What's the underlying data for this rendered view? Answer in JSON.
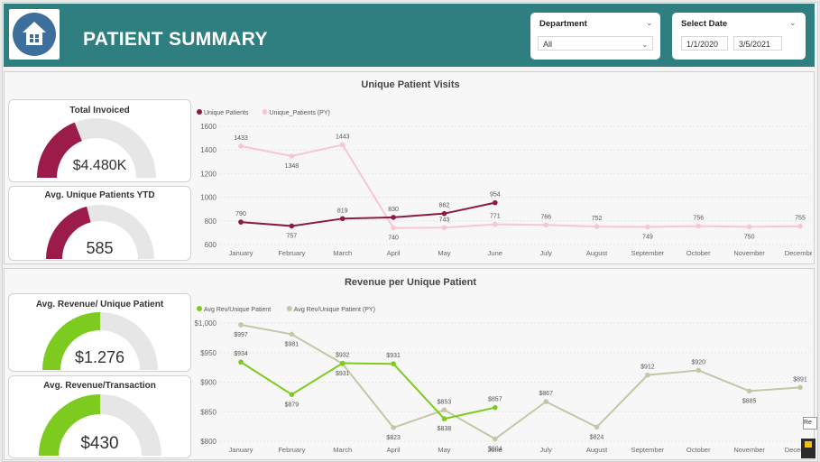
{
  "header": {
    "title": "PATIENT SUMMARY",
    "logo_icon": "home-icon",
    "bg_color": "#2f7f80"
  },
  "filters": {
    "department": {
      "label": "Department",
      "value": "All"
    },
    "date": {
      "label": "Select Date",
      "start": "1/1/2020",
      "end": "3/5/2021"
    }
  },
  "kpis": {
    "total_invoiced": {
      "title": "Total Invoiced",
      "value": "$4.480K",
      "fill": 0.38,
      "color": "#9b1b4b"
    },
    "avg_unique_patients": {
      "title": "Avg. Unique Patients YTD",
      "value": "585",
      "fill": 0.42,
      "color": "#9b1b4b"
    },
    "avg_revenue_unique": {
      "title": "Avg. Revenue/ Unique Patient",
      "value": "$1.276",
      "fill": 0.5,
      "color": "#7dcb1f"
    },
    "avg_revenue_transaction": {
      "title": "Avg. Revenue/Transaction",
      "value": "$430",
      "fill": 0.5,
      "color": "#7dcb1f"
    }
  },
  "misc": {
    "tooltip_fragment": "Re"
  },
  "chart_data": [
    {
      "type": "line",
      "title": "Unique Patient Visits",
      "categories": [
        "January",
        "February",
        "March",
        "April",
        "May",
        "June",
        "July",
        "August",
        "September",
        "October",
        "November",
        "December"
      ],
      "yticks": [
        "1600",
        "1400",
        "1200",
        "1000",
        "800",
        "600"
      ],
      "ylim": [
        600,
        1600
      ],
      "series": [
        {
          "name": "Unique Patients",
          "color": "#8c1a46",
          "values": [
            790,
            757,
            819,
            830,
            862,
            954,
            null,
            null,
            null,
            null,
            null,
            null
          ],
          "labels": [
            "790",
            "757",
            "819",
            "830",
            "862",
            "954"
          ]
        },
        {
          "name": "Unique_Patients (PY)",
          "color": "#f6c7d3",
          "values": [
            1433,
            1348,
            1443,
            740,
            743,
            771,
            766,
            752,
            749,
            756,
            750,
            755
          ],
          "labels": [
            "1433",
            "1348",
            "1443",
            "740",
            "743",
            "771",
            "766",
            "752",
            "749",
            "756",
            "750",
            "755"
          ]
        }
      ],
      "legend": "top-left"
    },
    {
      "type": "line",
      "title": "Revenue per Unique Patient",
      "categories": [
        "January",
        "February",
        "March",
        "April",
        "May",
        "June",
        "July",
        "August",
        "September",
        "October",
        "November",
        "December"
      ],
      "yticks": [
        "$1,000",
        "$950",
        "$900",
        "$850",
        "$800"
      ],
      "ylim": [
        800,
        1000
      ],
      "series": [
        {
          "name": "Avg Rev/Unique Patient",
          "color": "#7dcb1f",
          "values": [
            934,
            879,
            932,
            931,
            838,
            857,
            null,
            null,
            null,
            null,
            null,
            null
          ],
          "labels": [
            "$934",
            "$879",
            "$932",
            "$931",
            "$838",
            "$857"
          ]
        },
        {
          "name": "Avg Rev/Unique Patient (PY)",
          "color": "#c4c7a6",
          "values": [
            997,
            981,
            931,
            823,
            853,
            804,
            867,
            824,
            912,
            920,
            885,
            891
          ],
          "labels": [
            "$997",
            "$981",
            "$931",
            "$823",
            "$853",
            "$804",
            "$867",
            "$824",
            "$912",
            "$920",
            "$885",
            "$891"
          ]
        }
      ],
      "legend": "top-left"
    }
  ]
}
